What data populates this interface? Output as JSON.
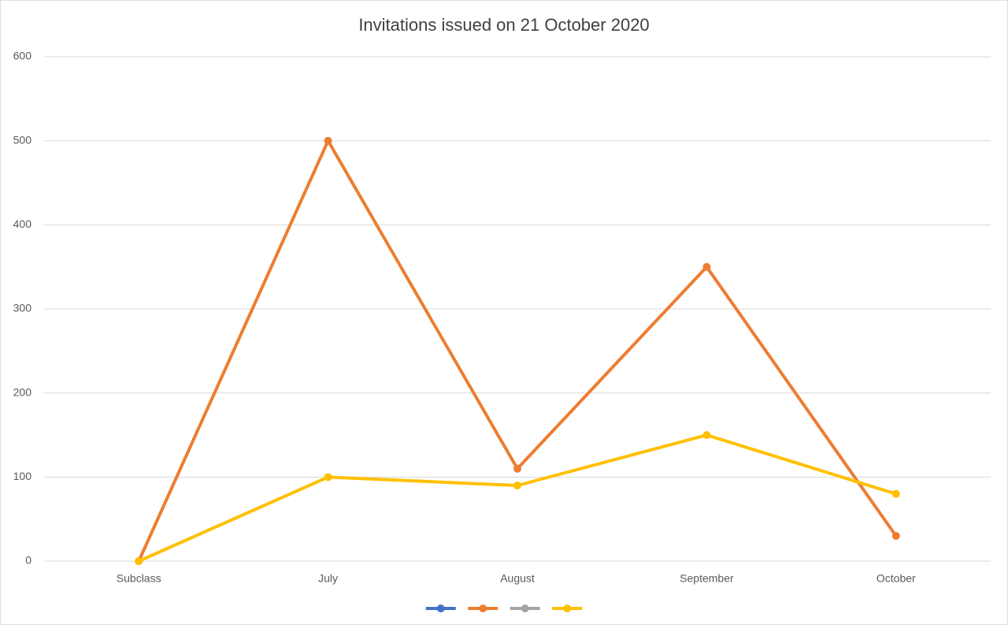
{
  "chart_data": {
    "type": "line",
    "title": "Invitations issued on 21 October 2020",
    "categories": [
      "Subclass",
      "July",
      "August",
      "September",
      "October"
    ],
    "series": [
      {
        "color": "#4472c4",
        "values": [
          null,
          null,
          null,
          null,
          null
        ]
      },
      {
        "color": "#ed7d31",
        "values": [
          0,
          500,
          110,
          350,
          30
        ]
      },
      {
        "color": "#a5a5a5",
        "values": [
          null,
          null,
          null,
          null,
          null
        ]
      },
      {
        "color": "#ffc000",
        "values": [
          0,
          100,
          90,
          150,
          80
        ]
      }
    ],
    "ylim": [
      0,
      600
    ],
    "yticks": [
      0,
      100,
      200,
      300,
      400,
      500,
      600
    ],
    "grid": true,
    "legend": "bottom"
  }
}
